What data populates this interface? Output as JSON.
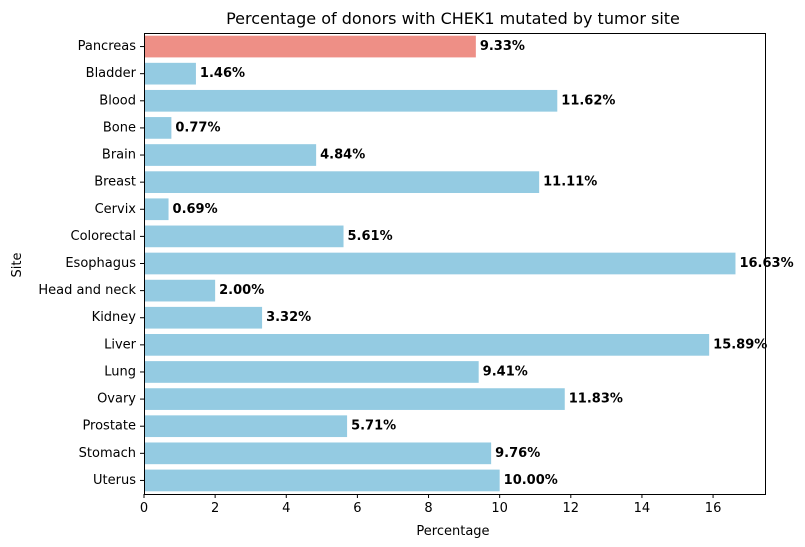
{
  "chart_data": {
    "type": "bar",
    "orientation": "horizontal",
    "title": "Percentage of donors with CHEK1 mutated by tumor site",
    "xlabel": "Percentage",
    "ylabel": "Site",
    "xlim": [
      0,
      17.46
    ],
    "xticks": [
      0,
      2,
      4,
      6,
      8,
      10,
      12,
      14,
      16
    ],
    "categories": [
      "Pancreas",
      "Bladder",
      "Blood",
      "Bone",
      "Brain",
      "Breast",
      "Cervix",
      "Colorectal",
      "Esophagus",
      "Head and neck",
      "Kidney",
      "Liver",
      "Lung",
      "Ovary",
      "Prostate",
      "Stomach",
      "Uterus"
    ],
    "values": [
      9.33,
      1.46,
      11.62,
      0.77,
      4.84,
      11.11,
      0.69,
      5.61,
      16.63,
      2.0,
      3.32,
      15.89,
      9.41,
      11.83,
      5.71,
      9.76,
      10.0
    ],
    "value_labels": [
      "9.33%",
      "1.46%",
      "11.62%",
      "0.77%",
      "4.84%",
      "11.11%",
      "0.69%",
      "5.61%",
      "16.63%",
      "2.00%",
      "3.32%",
      "15.89%",
      "9.41%",
      "11.83%",
      "5.71%",
      "9.76%",
      "10.00%"
    ],
    "highlight_index": 0,
    "colors": {
      "highlight": "#ee8f86",
      "default": "#94cbe2"
    },
    "grid": false
  }
}
